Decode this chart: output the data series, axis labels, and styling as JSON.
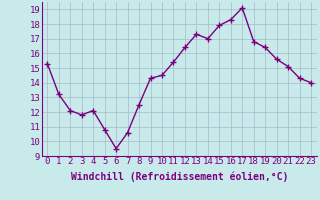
{
  "x": [
    0,
    1,
    2,
    3,
    4,
    5,
    6,
    7,
    8,
    9,
    10,
    11,
    12,
    13,
    14,
    15,
    16,
    17,
    18,
    19,
    20,
    21,
    22,
    23
  ],
  "y": [
    15.3,
    13.2,
    12.1,
    11.8,
    12.1,
    10.8,
    9.5,
    10.6,
    12.5,
    14.3,
    14.5,
    15.4,
    16.4,
    17.3,
    17.0,
    17.9,
    18.3,
    19.1,
    16.8,
    16.4,
    15.6,
    15.1,
    14.3,
    14.0
  ],
  "line_color": "#7B0080",
  "marker": "+",
  "marker_size": 4,
  "bg_color": "#c8eaea",
  "grid_color": "#a8b8c8",
  "xlabel": "Windchill (Refroidissement éolien,°C)",
  "xlim": [
    -0.5,
    23.5
  ],
  "ylim": [
    9,
    19.5
  ],
  "yticks": [
    9,
    10,
    11,
    12,
    13,
    14,
    15,
    16,
    17,
    18,
    19
  ],
  "xticks": [
    0,
    1,
    2,
    3,
    4,
    5,
    6,
    7,
    8,
    9,
    10,
    11,
    12,
    13,
    14,
    15,
    16,
    17,
    18,
    19,
    20,
    21,
    22,
    23
  ],
  "xlabel_fontsize": 7,
  "tick_fontsize": 6.5,
  "line_width": 1.0,
  "marker_linewidth": 1.0
}
